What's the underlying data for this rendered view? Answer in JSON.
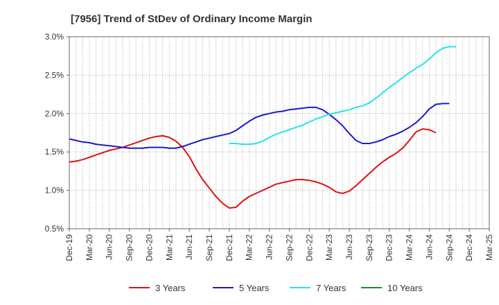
{
  "chart_data": {
    "type": "line",
    "title": "[7956]  Trend of StDev of Ordinary Income Margin",
    "xlabel": "",
    "ylabel": "",
    "ylim": [
      0.5,
      3.0
    ],
    "y_ticks": [
      "0.5%",
      "1.0%",
      "1.5%",
      "2.0%",
      "2.5%",
      "3.0%"
    ],
    "y_tick_values": [
      0.5,
      1.0,
      1.5,
      2.0,
      2.5,
      3.0
    ],
    "x_ticks": [
      "Dec-19",
      "Mar-20",
      "Jun-20",
      "Sep-20",
      "Dec-20",
      "Mar-21",
      "Jun-21",
      "Sep-21",
      "Dec-21",
      "Mar-22",
      "Jun-22",
      "Sep-22",
      "Dec-22",
      "Mar-23",
      "Jun-23",
      "Sep-23",
      "Dec-23",
      "Mar-24",
      "Jun-24",
      "Sep-24",
      "Dec-24",
      "Mar-25"
    ],
    "x_range": [
      "2019-12",
      "2025-03"
    ],
    "grid": true,
    "legend_position": "bottom",
    "series": [
      {
        "name": "3 Years",
        "color": "#dd1111",
        "start": "2019-12",
        "values": [
          1.37,
          1.38,
          1.4,
          1.43,
          1.46,
          1.49,
          1.52,
          1.54,
          1.56,
          1.59,
          1.62,
          1.65,
          1.68,
          1.7,
          1.71,
          1.69,
          1.64,
          1.56,
          1.44,
          1.28,
          1.14,
          1.03,
          0.92,
          0.83,
          0.77,
          0.78,
          0.86,
          0.92,
          0.96,
          1.0,
          1.04,
          1.08,
          1.1,
          1.12,
          1.14,
          1.14,
          1.13,
          1.11,
          1.08,
          1.04,
          0.98,
          0.96,
          0.99,
          1.06,
          1.14,
          1.22,
          1.3,
          1.37,
          1.43,
          1.48,
          1.55,
          1.65,
          1.76,
          1.8,
          1.79,
          1.75
        ]
      },
      {
        "name": "5 Years",
        "color": "#1a1acc",
        "start": "2019-12",
        "values": [
          1.67,
          1.65,
          1.63,
          1.62,
          1.6,
          1.59,
          1.58,
          1.57,
          1.56,
          1.55,
          1.55,
          1.55,
          1.56,
          1.56,
          1.56,
          1.55,
          1.55,
          1.57,
          1.6,
          1.63,
          1.66,
          1.68,
          1.7,
          1.72,
          1.74,
          1.78,
          1.84,
          1.9,
          1.95,
          1.98,
          2.0,
          2.02,
          2.03,
          2.05,
          2.06,
          2.07,
          2.08,
          2.08,
          2.05,
          1.99,
          1.92,
          1.84,
          1.74,
          1.65,
          1.61,
          1.61,
          1.63,
          1.66,
          1.7,
          1.73,
          1.77,
          1.82,
          1.88,
          1.96,
          2.06,
          2.12,
          2.13,
          2.13
        ]
      },
      {
        "name": "7 Years",
        "color": "#22e5e5",
        "start": "2021-12",
        "values": [
          1.61,
          1.61,
          1.6,
          1.6,
          1.61,
          1.64,
          1.69,
          1.73,
          1.76,
          1.79,
          1.82,
          1.85,
          1.89,
          1.93,
          1.96,
          1.99,
          2.01,
          2.03,
          2.05,
          2.08,
          2.1,
          2.14,
          2.2,
          2.27,
          2.34,
          2.4,
          2.47,
          2.53,
          2.59,
          2.64,
          2.71,
          2.79,
          2.85,
          2.87,
          2.87
        ]
      },
      {
        "name": "10 Years",
        "color": "#228822",
        "start": "2019-12",
        "values": []
      }
    ]
  }
}
